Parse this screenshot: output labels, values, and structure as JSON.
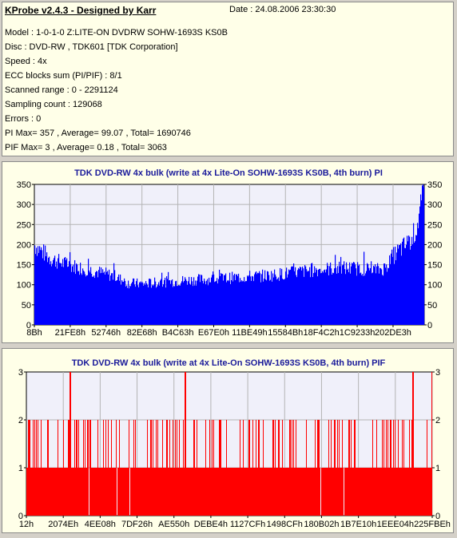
{
  "header": {
    "title": "KProbe v2.4.3 - Designed by Karr",
    "date": "Date : 24.08.2006 23:30:30"
  },
  "info_lines": [
    "Model : 1-0-1-0 Z:LITE-ON DVDRW SOHW-1693S KS0B",
    "Disc : DVD-RW , TDK601 [TDK Corporation]",
    "Speed : 4x",
    "ECC blocks sum (PI/PIF) : 8/1",
    "Scanned range : 0 - 2291124",
    "Sampling count : 129068",
    "Errors : 0",
    "PI Max= 357 , Average= 99.07 , Total= 1690746",
    "PIF Max= 3 , Average= 0.18 , Total= 3063"
  ],
  "colors": {
    "pi_bar": "#0000ff",
    "pif_bar": "#ff0000",
    "plot_bg": "#f0f0fa",
    "grid": "#b4b4b4",
    "title": "#1a1a9a",
    "panel_bg": "#ffffe8"
  },
  "chart_data": [
    {
      "type": "area",
      "title": "TDK DVD-RW 4x bulk (write at 4x Lite-On SOHW-1693S KS0B, 4th burn) PI",
      "ylim": [
        0,
        350
      ],
      "y_ticks": [
        0,
        50,
        100,
        150,
        200,
        250,
        300,
        350
      ],
      "x_tick_labels": [
        "8Bh",
        "21FE8h",
        "52746h",
        "82E68h",
        "B4C63h",
        "E67E0h",
        "11BE49h",
        "15584Bh",
        "18F4C2h",
        "1C9233h",
        "202DE3h"
      ],
      "grid": true,
      "x": [
        0,
        0.04,
        0.08,
        0.12,
        0.16,
        0.2,
        0.24,
        0.28,
        0.32,
        0.36,
        0.4,
        0.44,
        0.48,
        0.52,
        0.56,
        0.6,
        0.64,
        0.68,
        0.72,
        0.76,
        0.8,
        0.84,
        0.88,
        0.9,
        0.92,
        0.94,
        0.96,
        0.98,
        1.0
      ],
      "values": [
        210,
        175,
        160,
        150,
        140,
        130,
        110,
        108,
        112,
        115,
        118,
        120,
        122,
        125,
        128,
        130,
        135,
        140,
        145,
        148,
        150,
        148,
        145,
        150,
        180,
        200,
        215,
        250,
        345
      ]
    },
    {
      "type": "bar",
      "title": "TDK DVD-RW 4x bulk (write at 4x Lite-On SOHW-1693S KS0B, 4th burn) PIF",
      "ylim": [
        0,
        3
      ],
      "y_ticks": [
        0,
        1,
        2,
        3
      ],
      "x_tick_labels": [
        "12h",
        "2074Eh",
        "4EE08h",
        "7DF26h",
        "AE550h",
        "DEBE4h",
        "1127CFh",
        "1498CFh",
        "180B02h",
        "1B7E10h",
        "1EEE04h",
        "225FBEh"
      ],
      "grid": true,
      "value_levels": [
        0,
        1,
        2,
        3
      ],
      "peaks_at_3": [
        0.108,
        0.392,
        0.954,
        1.0
      ]
    }
  ]
}
